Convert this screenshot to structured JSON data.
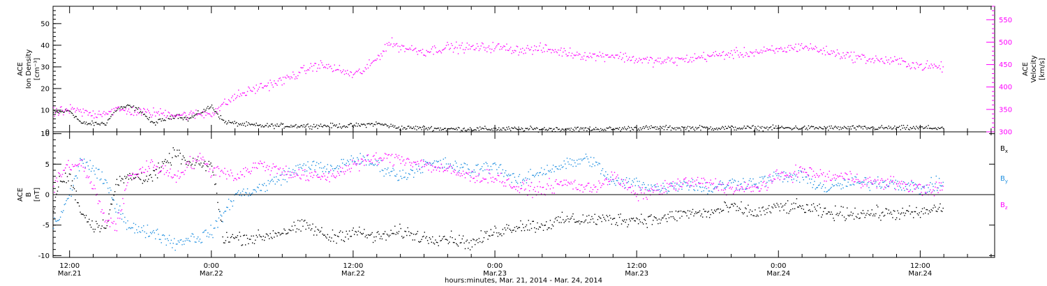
{
  "colors": {
    "ion_density": "#000000",
    "velocity": "#ff00ff",
    "bx": "#000000",
    "by": "#1e8fe0",
    "bz": "#ff00ff",
    "axis": "#000000"
  },
  "time_axis": {
    "tick_labels": [
      {
        "time": "12:00",
        "date": "Mar.21",
        "hours": 12
      },
      {
        "time": "0:00",
        "date": "Mar.22",
        "hours": 24
      },
      {
        "time": "12:00",
        "date": "Mar.22",
        "hours": 36
      },
      {
        "time": "0:00",
        "date": "Mar.23",
        "hours": 48
      },
      {
        "time": "12:00",
        "date": "Mar.23",
        "hours": 60
      },
      {
        "time": "0:00",
        "date": "Mar.24",
        "hours": 72
      },
      {
        "time": "12:00",
        "date": "Mar.24",
        "hours": 84
      }
    ],
    "caption": "hours:minutes, Mar. 21, 2014 - Mar. 24, 2014"
  },
  "chart_data": [
    {
      "type": "scatter",
      "panel": "top",
      "xlim_hours": [
        10.6,
        90.3
      ],
      "left_axis": {
        "label_lines": [
          "ACE",
          "Ion Density",
          "[cm⁻³]"
        ],
        "ylim": [
          0,
          58
        ],
        "ticks": [
          "0",
          "10",
          "20",
          "30",
          "40",
          "50"
        ],
        "tick_values": [
          0,
          10,
          20,
          30,
          40,
          50
        ]
      },
      "right_axis": {
        "label_lines": [
          "ACE",
          "Velocity",
          "[km/s]"
        ],
        "ylim": [
          300,
          580
        ],
        "ticks": [
          "300",
          "350",
          "400",
          "450",
          "500",
          "550"
        ],
        "tick_values": [
          300,
          350,
          400,
          450,
          500,
          550
        ]
      },
      "series": [
        {
          "key": "ion_density",
          "axis": "left",
          "x_hours": [
            10.6,
            12,
            13,
            15,
            16,
            17,
            18,
            19,
            20,
            21,
            22,
            23,
            24,
            25,
            26,
            28,
            30,
            32,
            34,
            36,
            38,
            40,
            42,
            44,
            46,
            48,
            50,
            52,
            54,
            56,
            58,
            60,
            62,
            64,
            66,
            68,
            70,
            72,
            74,
            76,
            78,
            80,
            82,
            84,
            85.9
          ],
          "values": [
            9,
            10,
            4,
            4,
            11,
            12,
            10,
            4,
            6,
            8,
            6,
            9,
            12,
            5,
            4,
            3,
            3,
            3,
            3,
            3,
            4,
            2,
            2,
            1.5,
            1.5,
            1.5,
            1.5,
            1.5,
            1.5,
            1.5,
            1.5,
            2,
            2,
            2,
            2,
            2,
            2,
            2,
            2,
            2,
            2,
            2,
            2,
            2,
            2
          ]
        },
        {
          "key": "velocity",
          "axis": "right",
          "x_hours": [
            10.6,
            12,
            14,
            16,
            18,
            20,
            22,
            24,
            26,
            28,
            30,
            32,
            33,
            34,
            36,
            37,
            38,
            39,
            40,
            42,
            44,
            46,
            48,
            50,
            52,
            54,
            56,
            58,
            60,
            62,
            64,
            66,
            68,
            70,
            72,
            74,
            76,
            78,
            80,
            82,
            84,
            85.9
          ],
          "values": [
            342,
            350,
            340,
            350,
            345,
            342,
            338,
            343,
            380,
            400,
            415,
            440,
            450,
            445,
            428,
            440,
            465,
            500,
            490,
            480,
            490,
            488,
            490,
            484,
            486,
            478,
            470,
            472,
            462,
            458,
            462,
            470,
            475,
            478,
            483,
            492,
            480,
            470,
            462,
            458,
            448,
            445
          ]
        }
      ]
    },
    {
      "type": "scatter",
      "panel": "bottom",
      "xlim_hours": [
        10.6,
        90.3
      ],
      "left_axis": {
        "label_lines": [
          "ACE",
          "B",
          "[nT]"
        ],
        "ylim": [
          -10.3,
          10.3
        ],
        "ticks": [
          "-10",
          "-5",
          "0",
          "5",
          "10"
        ],
        "tick_values": [
          -10,
          -5,
          0,
          5,
          10
        ]
      },
      "zero_line": 0,
      "legend": {
        "placement": "right",
        "entries": [
          {
            "label": "B",
            "subscript": "x",
            "series": "bx"
          },
          {
            "label": "B",
            "subscript": "y",
            "series": "by"
          },
          {
            "label": "B",
            "subscript": "z",
            "series": "bz"
          }
        ]
      },
      "series": [
        {
          "key": "bx",
          "x_hours": [
            10.6,
            11,
            12,
            13,
            14,
            15,
            16,
            17,
            18,
            19,
            20,
            21,
            22,
            23,
            24,
            24.5,
            25,
            26,
            28,
            30,
            32,
            34,
            36,
            38,
            40,
            42,
            44,
            46,
            48,
            50,
            52,
            54,
            56,
            58,
            60,
            62,
            64,
            66,
            68,
            70,
            72,
            74,
            76,
            78,
            80,
            82,
            84,
            85.9
          ],
          "values": [
            -3,
            2,
            3,
            -3,
            -5,
            -5,
            2,
            3,
            3,
            3,
            5,
            7,
            5,
            5,
            5,
            -1,
            -7,
            -7,
            -7,
            -6,
            -5,
            -7,
            -6,
            -7,
            -6,
            -7,
            -7,
            -8,
            -6,
            -5,
            -5,
            -4,
            -4,
            -4,
            -4,
            -4,
            -3,
            -3,
            -2,
            -3,
            -2,
            -2,
            -3,
            -3,
            -3,
            -3,
            -3,
            -2
          ]
        },
        {
          "key": "by",
          "x_hours": [
            10.6,
            11,
            12,
            13,
            14,
            15,
            16,
            17,
            18,
            19,
            20,
            21,
            22,
            23,
            24,
            25,
            26,
            28,
            30,
            32,
            34,
            36,
            38,
            40,
            42,
            44,
            46,
            48,
            50,
            52,
            54,
            56,
            58,
            60,
            62,
            64,
            66,
            68,
            70,
            72,
            74,
            76,
            78,
            80,
            82,
            84,
            85.9
          ],
          "values": [
            -5,
            -4,
            0,
            6,
            4,
            2,
            -2,
            -5,
            -6,
            -6,
            -7,
            -8,
            -7,
            -7,
            -6,
            -3,
            0,
            1,
            3,
            5,
            4,
            6,
            5,
            3,
            5,
            5,
            4,
            5,
            2,
            4,
            5,
            6,
            2,
            2,
            1,
            2,
            1,
            2,
            2,
            3,
            3,
            1,
            2,
            2,
            2,
            1,
            2
          ]
        },
        {
          "key": "bz",
          "x_hours": [
            10.6,
            11,
            12,
            13,
            14,
            15,
            16,
            17,
            18,
            19,
            20,
            21,
            22,
            23,
            24,
            25,
            26,
            28,
            30,
            32,
            34,
            36,
            38,
            40,
            42,
            44,
            46,
            48,
            50,
            52,
            54,
            56,
            58,
            60,
            62,
            64,
            66,
            68,
            70,
            72,
            74,
            76,
            78,
            80,
            82,
            84,
            85.9
          ],
          "values": [
            1,
            3,
            5,
            5,
            1,
            -4,
            -5,
            3,
            4,
            5,
            4,
            3,
            5,
            6,
            4,
            4,
            3,
            5,
            4,
            3,
            3,
            5,
            6,
            6,
            5,
            4,
            3,
            3,
            1,
            1,
            2,
            1,
            3,
            0,
            1,
            2,
            2,
            1,
            1,
            3,
            4,
            3,
            3,
            2,
            2,
            1,
            1
          ]
        }
      ]
    }
  ]
}
